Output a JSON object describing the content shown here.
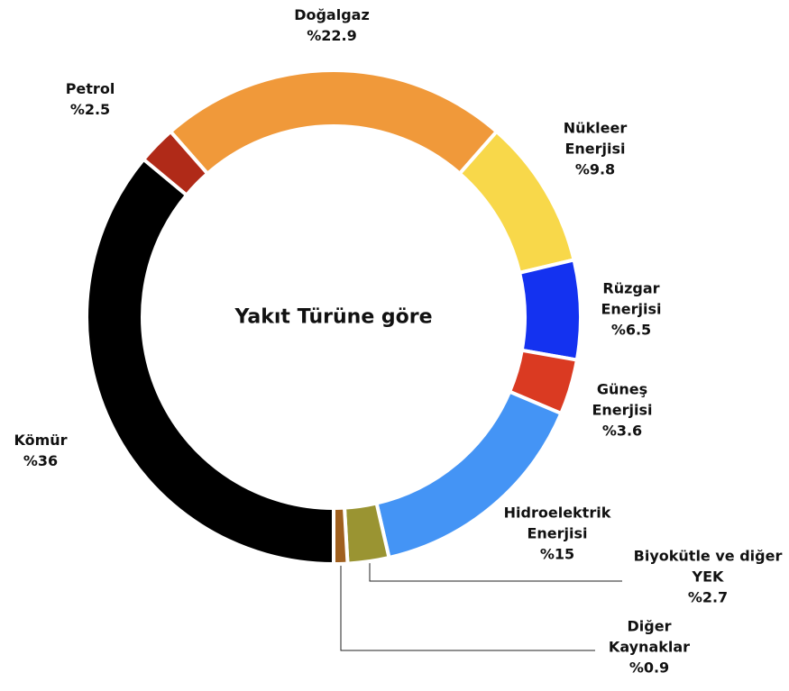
{
  "chart_data": {
    "type": "donut",
    "title": "Yakıt Türüne göre",
    "categories": [
      "Kömür",
      "Petrol",
      "Doğalgaz",
      "Nükleer Enerjisi",
      "Rüzgar Enerjisi",
      "Güneş Enerjisi",
      "Hidroelektrik Enerjisi",
      "Biyokütle ve diğer YEK",
      "Diğer Kaynaklar"
    ],
    "values": [
      36,
      2.5,
      22.9,
      9.8,
      6.5,
      3.6,
      15,
      2.7,
      0.9
    ],
    "value_labels": [
      "%36",
      "%2.5",
      "%22.9",
      "%9.8",
      "%6.5",
      "%3.6",
      "%15",
      "%2.7",
      "%0.9"
    ],
    "colors": [
      "#000000",
      "#b02a18",
      "#f0993a",
      "#f8d84a",
      "#1432f0",
      "#da3a22",
      "#4494f5",
      "#9a9432",
      "#a0601f"
    ]
  }
}
